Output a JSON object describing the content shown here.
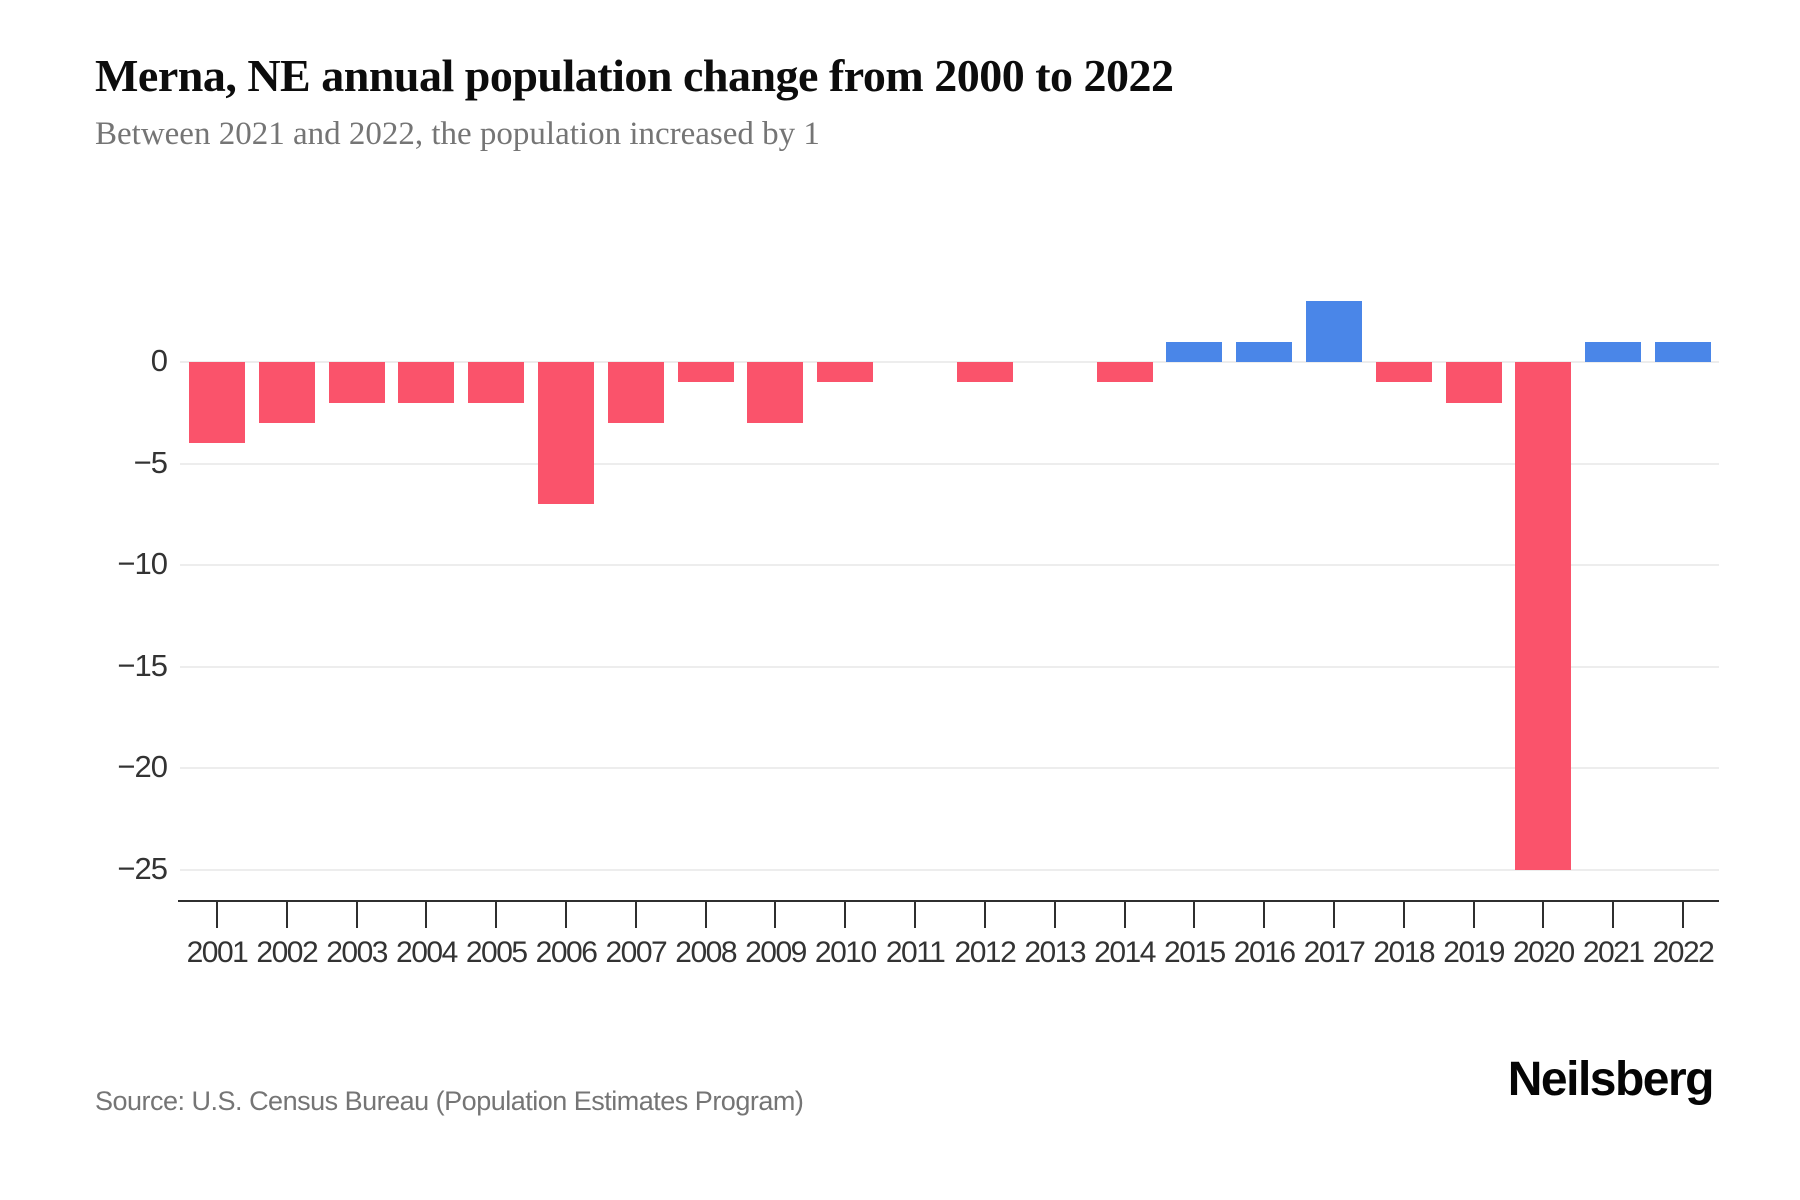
{
  "header": {
    "title": "Merna, NE annual population change from 2000 to 2022",
    "subtitle": "Between 2021 and 2022, the population increased by 1"
  },
  "footer": {
    "source": "Source: U.S. Census Bureau (Population Estimates Program)",
    "brand": "Neilsberg"
  },
  "chart_data": {
    "type": "bar",
    "title": "Merna, NE annual population change from 2000 to 2022",
    "subtitle": "Between 2021 and 2022, the population increased by 1",
    "categories": [
      "2001",
      "2002",
      "2003",
      "2004",
      "2005",
      "2006",
      "2007",
      "2008",
      "2009",
      "2010",
      "2011",
      "2012",
      "2013",
      "2014",
      "2015",
      "2016",
      "2017",
      "2018",
      "2019",
      "2020",
      "2021",
      "2022"
    ],
    "values": [
      -4,
      -3,
      -2,
      -2,
      -2,
      -7,
      -3,
      -1,
      -3,
      -1,
      0,
      -1,
      0,
      -1,
      1,
      1,
      3,
      -1,
      -2,
      -25,
      1,
      1
    ],
    "xlabel": "",
    "ylabel": "",
    "yticks": [
      0,
      -5,
      -10,
      -15,
      -20,
      -25
    ],
    "ytick_labels": [
      "0",
      "−5",
      "−10",
      "−15",
      "−20",
      "−25"
    ],
    "ylim": [
      -27,
      4
    ],
    "grid": "horizontal",
    "legend": "none",
    "colors": {
      "positive": "#4A86E8",
      "negative": "#FA536B",
      "gridline": "#EDEDED",
      "axis": "#2F2F2F",
      "tick_text": "#333333",
      "subtitle_text": "#757575"
    }
  }
}
